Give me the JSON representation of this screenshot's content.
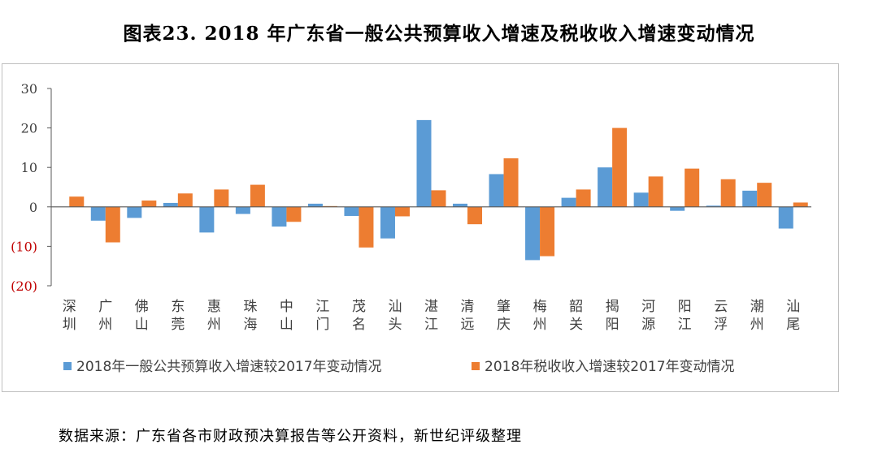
{
  "title": "图表23. 2018 年广东省一般公共预算收入增速及税收收入增速变动情况",
  "source_note": "数据来源：广东省各市财政预决算报告等公开资料，新世纪评级整理",
  "colors": {
    "blue": "#5b9bd5",
    "orange": "#ed7d31",
    "negative_tick": "#c00000",
    "axis": "#595959",
    "text": "#404040"
  },
  "chart_data": {
    "type": "bar",
    "title": "图表23. 2018 年广东省一般公共预算收入增速及税收收入增速变动情况",
    "xlabel": "",
    "ylabel": "",
    "ylim": [
      -20,
      30
    ],
    "y_ticks": [
      {
        "value": 30,
        "label": "30"
      },
      {
        "value": 20,
        "label": "20"
      },
      {
        "value": 10,
        "label": "10"
      },
      {
        "value": 0,
        "label": "0"
      },
      {
        "value": -10,
        "label": "(10)"
      },
      {
        "value": -20,
        "label": "(20)"
      }
    ],
    "grid": false,
    "legend_position": "bottom",
    "categories": [
      "深圳",
      "广州",
      "佛山",
      "东莞",
      "惠州",
      "珠海",
      "中山",
      "江门",
      "茂名",
      "汕头",
      "湛江",
      "清远",
      "肇庆",
      "梅州",
      "韶关",
      "揭阳",
      "河源",
      "阳江",
      "云浮",
      "潮州",
      "汕尾"
    ],
    "series": [
      {
        "name": "2018年一般公共预算收入增速较2017年变动情况",
        "color": "#5b9bd5",
        "values": [
          0,
          -3.5,
          -2.8,
          1.0,
          -6.5,
          -1.8,
          -5.0,
          0.8,
          -2.3,
          -8.0,
          22.0,
          0.8,
          8.3,
          -13.5,
          2.3,
          10.0,
          3.6,
          -1.0,
          0.3,
          4.1,
          -5.5
        ]
      },
      {
        "name": "2018年税收收入增速较2017年变动情况",
        "color": "#ed7d31",
        "values": [
          2.6,
          -9.0,
          1.6,
          3.4,
          4.4,
          5.6,
          -3.8,
          0.2,
          -10.3,
          -2.4,
          4.2,
          -4.4,
          12.3,
          -12.5,
          4.4,
          20.0,
          7.7,
          9.7,
          7.0,
          6.1,
          1.1
        ]
      }
    ]
  }
}
